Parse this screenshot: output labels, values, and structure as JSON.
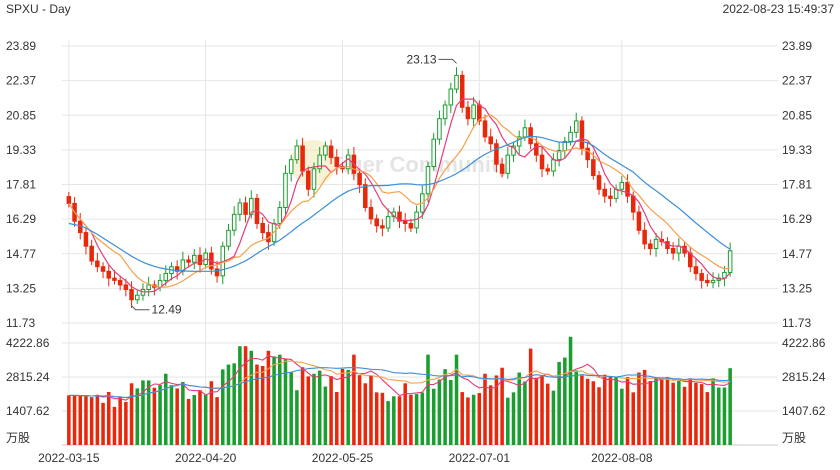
{
  "header": {
    "title": "SPXU - Day",
    "datetime": "2022-08-23 15:49:37"
  },
  "watermark": "Tiger Community",
  "colors": {
    "up": "#1a9e2f",
    "down": "#e8280c",
    "ma5": "#e83a7a",
    "ma10": "#f5a04a",
    "ma20": "#3c8fd8",
    "grid": "#e6e6e6",
    "text": "#333333"
  },
  "chart_data": [
    {
      "type": "candlestick",
      "price_ticks": [
        "23.89",
        "22.37",
        "20.85",
        "19.33",
        "17.81",
        "16.29",
        "14.77",
        "13.25",
        "11.73"
      ],
      "ylim": [
        11.73,
        23.89
      ],
      "annotations": {
        "high": "23.13",
        "low": "12.49"
      },
      "x_ticks": [
        {
          "label": "2022-03-15",
          "index": 0
        },
        {
          "label": "2022-04-20",
          "index": 24
        },
        {
          "label": "2022-05-25",
          "index": 48
        },
        {
          "label": "2022-07-01",
          "index": 72
        },
        {
          "label": "2022-08-08",
          "index": 97
        }
      ],
      "close": [
        16.98,
        16.2,
        15.7,
        15.1,
        14.45,
        14.2,
        14.0,
        13.7,
        13.6,
        13.4,
        13.2,
        12.75,
        12.95,
        13.2,
        13.4,
        13.3,
        13.6,
        13.9,
        14.2,
        14.0,
        14.5,
        14.4,
        14.7,
        14.3,
        14.8,
        14.1,
        13.8,
        15.1,
        15.8,
        16.5,
        17.0,
        16.5,
        17.2,
        16.1,
        15.7,
        15.3,
        16.1,
        16.8,
        18.3,
        18.9,
        19.5,
        18.4,
        17.6,
        18.5,
        19.1,
        19.5,
        19.0,
        18.6,
        18.5,
        19.1,
        18.3,
        17.8,
        16.8,
        16.3,
        16.0,
        15.9,
        16.4,
        16.6,
        16.2,
        16.1,
        15.9,
        16.6,
        17.4,
        18.6,
        19.8,
        20.7,
        21.3,
        22.0,
        22.6,
        21.2,
        20.7,
        21.3,
        20.6,
        19.9,
        19.6,
        18.7,
        18.3,
        19.1,
        19.5,
        19.9,
        20.3,
        19.6,
        19.1,
        18.5,
        18.4,
        18.9,
        19.3,
        19.7,
        20.1,
        20.6,
        19.4,
        18.9,
        18.2,
        17.6,
        17.3,
        17.2,
        17.6,
        17.9,
        17.3,
        16.6,
        15.8,
        15.2,
        15.0,
        15.4,
        15.3,
        15.0,
        14.8,
        15.1,
        14.8,
        14.2,
        13.9,
        13.6,
        13.5,
        13.6,
        13.7,
        13.95,
        14.9
      ],
      "ma_series": [
        {
          "key": "ma5",
          "values": [
            16.98,
            16.59,
            16.29,
            15.99,
            15.69,
            15.13,
            14.69,
            14.29,
            13.99,
            13.78,
            13.58,
            13.33,
            13.18,
            13.1,
            13.1,
            13.12,
            13.29,
            13.48,
            13.68,
            13.8,
            14.04,
            14.2,
            14.36,
            14.38,
            14.54,
            14.46,
            14.34,
            14.42,
            14.52,
            14.66,
            15.24,
            15.94,
            16.6,
            16.66,
            16.5,
            16.16,
            16.08,
            16.0,
            16.44,
            17.08,
            17.92,
            18.38,
            18.54,
            18.58,
            18.62,
            18.62,
            18.34,
            18.54,
            18.74,
            18.94,
            18.7,
            18.46,
            18.26,
            17.9,
            17.44,
            16.96,
            16.68,
            16.44,
            16.22,
            16.24,
            16.24,
            16.28,
            16.44,
            16.92,
            17.7,
            18.62,
            19.56,
            20.48,
            21.28,
            21.56,
            21.56,
            21.56,
            21.28,
            21.14,
            20.74,
            20.44,
            19.9,
            19.52,
            19.44,
            19.1,
            19.02,
            19.28,
            19.48,
            19.48,
            19.18,
            18.9,
            18.84,
            18.96,
            19.28,
            19.72,
            19.82,
            19.74,
            19.44,
            18.94,
            18.28,
            17.84,
            17.58,
            17.52,
            17.46,
            17.32,
            17.04,
            16.56,
            15.98,
            15.6,
            15.34,
            15.18,
            15.1,
            15.12,
            15.0,
            14.78,
            14.56,
            14.32,
            14.0,
            13.76,
            13.66,
            13.67,
            13.93
          ]
        },
        {
          "key": "ma10",
          "values": [
            16.98,
            16.59,
            16.29,
            15.99,
            15.69,
            15.44,
            15.24,
            15.04,
            14.86,
            14.7,
            14.36,
            14.02,
            13.74,
            13.55,
            13.44,
            13.35,
            13.31,
            13.3,
            13.36,
            13.45,
            13.58,
            13.75,
            13.92,
            14.03,
            14.17,
            14.25,
            14.27,
            14.39,
            14.45,
            14.6,
            14.64,
            14.88,
            15.13,
            15.27,
            15.36,
            15.45,
            15.73,
            16.0,
            16.32,
            16.64,
            16.87,
            17.05,
            17.09,
            17.33,
            17.67,
            18.07,
            18.36,
            18.54,
            18.56,
            18.6,
            18.48,
            18.42,
            18.34,
            18.16,
            17.85,
            17.49,
            17.43,
            17.47,
            17.5,
            17.31,
            17.05,
            16.93,
            16.99,
            17.22,
            17.6,
            18.08,
            18.45,
            18.76,
            19.06,
            19.39,
            19.86,
            20.33,
            20.65,
            20.78,
            20.87,
            20.68,
            20.38,
            20.2,
            19.97,
            19.82,
            19.88,
            19.87,
            19.75,
            19.51,
            19.39,
            19.29,
            19.24,
            19.29,
            19.35,
            19.42,
            19.33,
            19.29,
            19.1,
            18.84,
            18.73,
            18.6,
            18.44,
            18.26,
            17.98,
            17.58,
            17.34,
            17.02,
            16.74,
            16.51,
            16.31,
            16.09,
            15.81,
            15.54,
            15.3,
            15.06,
            14.87,
            14.71,
            14.56,
            14.38,
            14.22,
            14.11,
            14.14
          ]
        },
        {
          "key": "ma20",
          "values": [
            16.1,
            16.05,
            16.0,
            15.9,
            15.76,
            15.62,
            15.46,
            15.3,
            15.14,
            14.98,
            14.82,
            14.66,
            14.52,
            14.4,
            14.3,
            14.22,
            14.15,
            14.1,
            14.06,
            14.03,
            14.02,
            14.01,
            14.0,
            14.0,
            14.0,
            14.0,
            14.02,
            14.07,
            14.14,
            14.23,
            14.34,
            14.46,
            14.61,
            14.78,
            14.94,
            15.08,
            15.22,
            15.37,
            15.55,
            15.74,
            15.94,
            16.12,
            16.28,
            16.47,
            16.66,
            16.85,
            17.04,
            17.22,
            17.38,
            17.52,
            17.61,
            17.68,
            17.73,
            17.76,
            17.76,
            17.76,
            17.77,
            17.8,
            17.83,
            17.84,
            17.83,
            17.8,
            17.79,
            17.81,
            17.86,
            17.95,
            18.05,
            18.16,
            18.29,
            18.44,
            18.61,
            18.8,
            18.98,
            19.13,
            19.26,
            19.37,
            19.46,
            19.56,
            19.66,
            19.78,
            19.88,
            19.92,
            19.91,
            19.87,
            19.8,
            19.73,
            19.67,
            19.66,
            19.67,
            19.71,
            19.7,
            19.64,
            19.51,
            19.32,
            19.13,
            18.96,
            18.81,
            18.66,
            18.51,
            18.36,
            18.13,
            17.91,
            17.72,
            17.54,
            17.35,
            17.15,
            16.96,
            16.77,
            16.56,
            16.34,
            16.12,
            15.92,
            15.71,
            15.51,
            15.31,
            15.13,
            14.97
          ]
        }
      ],
      "legend": "none",
      "grid": true
    },
    {
      "type": "bar",
      "volume_ticks": [
        "4222.86",
        "2815.24",
        "1407.62"
      ],
      "unit_label": "万股",
      "ylim": [
        0,
        4222.86
      ],
      "volume": [
        2055,
        2054,
        2030,
        2030,
        1980,
        2080,
        1745,
        2195,
        1580,
        1980,
        1785,
        2555,
        2345,
        2675,
        2675,
        2370,
        2480,
        2950,
        2480,
        2340,
        2610,
        1906,
        2070,
        2270,
        2080,
        2640,
        1980,
        3130,
        3330,
        3380,
        4090,
        4090,
        3900,
        3330,
        3270,
        3900,
        3670,
        3740,
        3580,
        3000,
        2270,
        3220,
        2840,
        2950,
        3080,
        2420,
        2850,
        2195,
        3150,
        3110,
        3740,
        2890,
        2555,
        2860,
        2180,
        2160,
        1818,
        2016,
        2016,
        2555,
        2085,
        2110,
        2170,
        3740,
        2330,
        2710,
        3140,
        2690,
        3740,
        2190,
        1970,
        2080,
        2150,
        2950,
        2470,
        2880,
        3200,
        1960,
        2180,
        3000,
        2630,
        3990,
        2780,
        2850,
        2540,
        2250,
        3440,
        3620,
        4480,
        3090,
        2880,
        2740,
        2640,
        2390,
        2910,
        2850,
        2810,
        2330,
        2810,
        2180,
        3000,
        3110,
        2650,
        2800,
        2720,
        2750,
        2580,
        2660,
        2410,
        2760,
        2570,
        2520,
        2190,
        2760,
        2380,
        2380,
        3180
      ],
      "ma_series": [
        {
          "key": "ma5",
          "values": [
            2055,
            2055,
            2046,
            2042,
            2030,
            2035,
            1993,
            2006,
            1916,
            1916,
            1857,
            2019,
            2049,
            2184,
            2403,
            2524,
            2509,
            2630,
            2551,
            2502,
            2522,
            2283,
            2249,
            2254,
            2067,
            2184,
            2208,
            2436,
            2632,
            2836,
            3194,
            3404,
            3578,
            3582,
            3516,
            3702,
            3622,
            3604,
            3566,
            3542,
            3336,
            3162,
            2975,
            2777,
            2873,
            2903,
            2829,
            2710,
            2783,
            2806,
            2978,
            2948,
            2967,
            3063,
            2924,
            2701,
            2474,
            2270,
            2049,
            2119,
            2131,
            2157,
            2185,
            2508,
            2506,
            2625,
            2818,
            2896,
            2994,
            2782,
            2704,
            2499,
            2362,
            2408,
            2333,
            2399,
            2688,
            2628,
            2551,
            2463,
            2562,
            2794,
            2712,
            2860,
            2934,
            2837,
            2774,
            2808,
            3040,
            3148,
            3219,
            3341,
            3166,
            2840,
            2716,
            2718,
            2698,
            2604,
            2624,
            2513,
            2534,
            2535,
            2592,
            2648,
            2749,
            2799,
            2729,
            2702,
            2624,
            2634,
            2613,
            2593,
            2498,
            2518,
            2484,
            2464,
            2580
          ]
        },
        {
          "key": "ma10",
          "values": [
            2055,
            2055,
            2046,
            2042,
            2030,
            2035,
            2029,
            2049,
            1998,
            1991,
            1963,
            2013,
            2029,
            2076,
            2151,
            2185,
            2258,
            2336,
            2428,
            2466,
            2529,
            2466,
            2439,
            2403,
            2393,
            2353,
            2352,
            2370,
            2398,
            2461,
            2564,
            2783,
            2891,
            3009,
            3014,
            3158,
            3327,
            3373,
            3464,
            3475,
            3442,
            3415,
            3335,
            3280,
            3207,
            3110,
            3082,
            2925,
            2973,
            2985,
            3058,
            2935,
            2887,
            2877,
            2837,
            2814,
            2712,
            2695,
            2662,
            2647,
            2563,
            2566,
            2579,
            2697,
            2714,
            2793,
            2921,
            2964,
            3141,
            2904,
            2894,
            2865,
            2765,
            2725,
            2739,
            2753,
            2758,
            2685,
            2694,
            2737,
            2803,
            2994,
            3062,
            2964,
            2913,
            2853,
            2879,
            2963,
            3054,
            3040,
            3068,
            2942,
            2924,
            2796,
            2832,
            2832,
            2816,
            2772,
            2749,
            2750,
            2746,
            2781,
            2763,
            2778,
            2723,
            2718,
            2674,
            2709,
            2670,
            2720,
            2691,
            2682,
            2666,
            2659,
            2634,
            2600,
            2631
          ]
        },
        {
          "key": "ma20",
          "values": [
            2055,
            2055,
            2046,
            2042,
            2030,
            2035,
            2029,
            2049,
            1998,
            1991,
            1963,
            2013,
            2029,
            2076,
            2151,
            2185,
            2258,
            2336,
            2428,
            2466,
            2529,
            2466,
            2439,
            2403,
            2393,
            2353,
            2352,
            2370,
            2398,
            2461,
            2540,
            2620,
            2690,
            2735,
            2782,
            2806,
            2885,
            2938,
            2978,
            3016,
            3084,
            3115,
            3163,
            3180,
            3199,
            3200,
            3187,
            3177,
            3184,
            3200,
            3200,
            3196,
            3164,
            3135,
            3127,
            3110,
            3058,
            2995,
            2983,
            2965,
            2983,
            2952,
            2928,
            2923,
            2876,
            2855,
            2866,
            2875,
            2903,
            2824,
            2849,
            2820,
            2767,
            2760,
            2738,
            2738,
            2756,
            2713,
            2742,
            2800,
            2793,
            2865,
            2912,
            2881,
            2828,
            2807,
            2817,
            2825,
            2867,
            2871,
            2917,
            2881,
            2875,
            2880,
            2857,
            2839,
            2813,
            2848,
            2902,
            2895,
            2907,
            2863,
            2844,
            2787,
            2778,
            2775,
            2745,
            2740,
            2710,
            2735,
            2718,
            2732,
            2715,
            2719,
            2678,
            2672,
            2686
          ]
        }
      ],
      "legend": "none",
      "grid": true
    }
  ]
}
